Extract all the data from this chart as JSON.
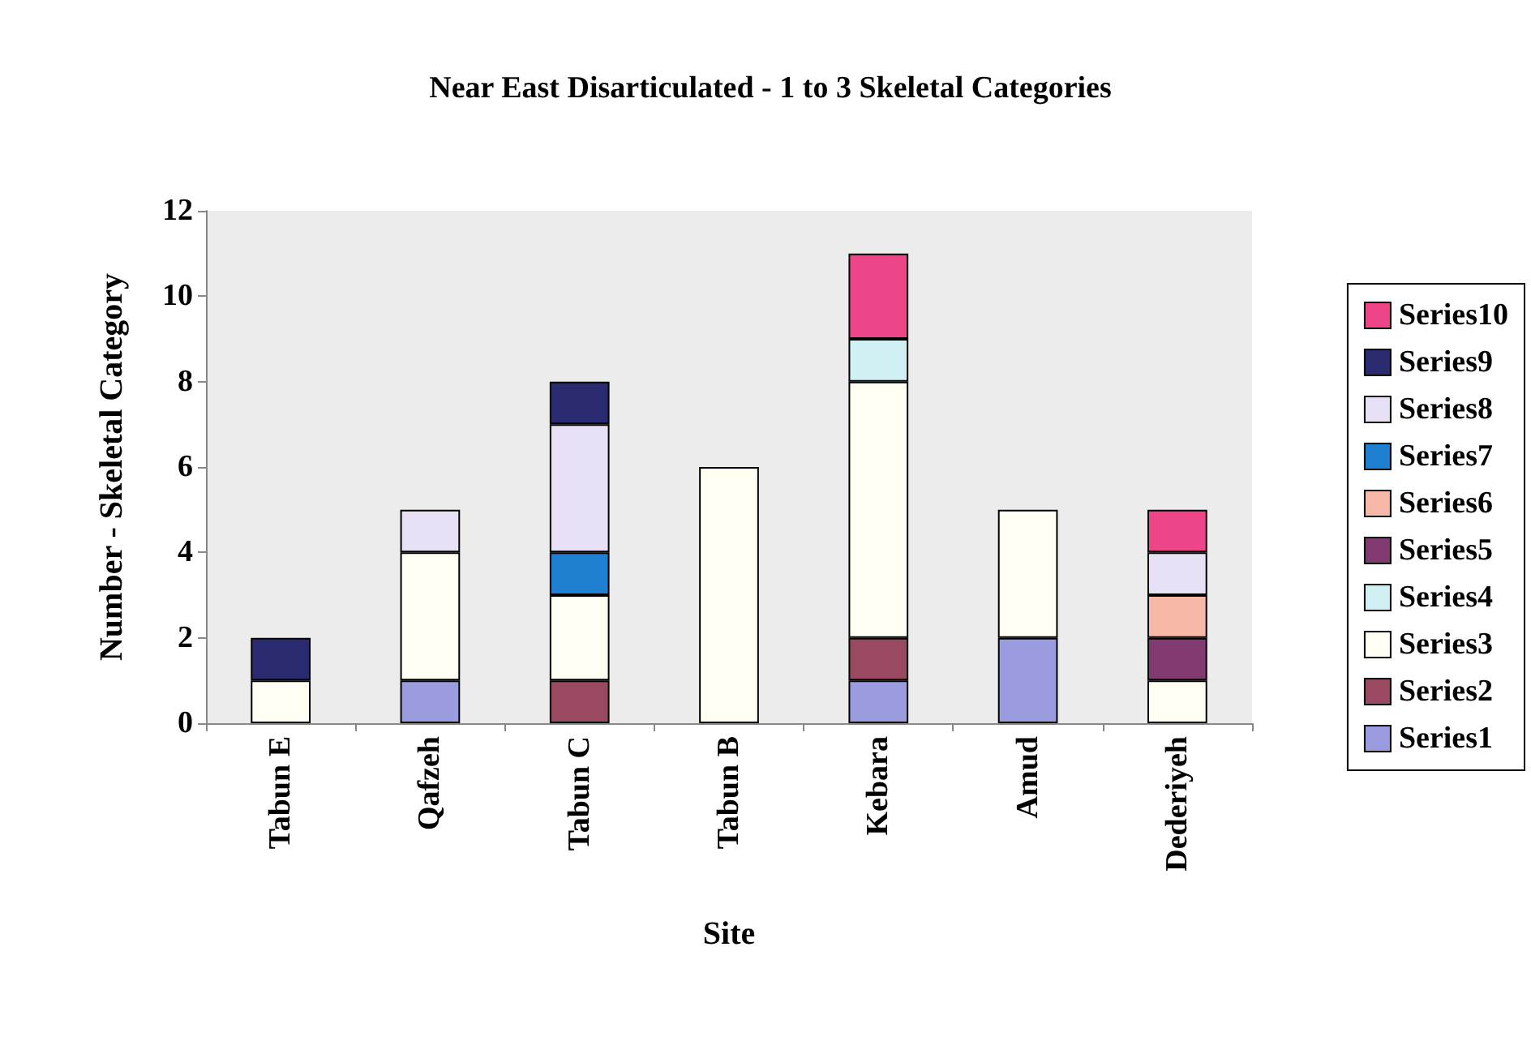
{
  "chart_data": {
    "type": "bar",
    "stacked": true,
    "title": "Near East Disarticulated - 1 to 3 Skeletal Categories",
    "xlabel": "Site",
    "ylabel": "Number - Skeletal Category",
    "categories": [
      "Tabun E",
      "Qafzeh",
      "Tabun C",
      "Tabun B",
      "Kebara",
      "Amud",
      "Dederiyeh"
    ],
    "series": [
      {
        "name": "Series1",
        "color": "#9b9be0",
        "values": [
          null,
          1,
          null,
          null,
          1,
          2,
          null
        ]
      },
      {
        "name": "Series2",
        "color": "#9a4a60",
        "values": [
          null,
          null,
          1,
          null,
          1,
          null,
          null
        ]
      },
      {
        "name": "Series3",
        "color": "#fffff4",
        "values": [
          1,
          3,
          2,
          6,
          6,
          3,
          1
        ]
      },
      {
        "name": "Series4",
        "color": "#d0f0f4",
        "values": [
          null,
          null,
          null,
          null,
          1,
          null,
          null
        ]
      },
      {
        "name": "Series5",
        "color": "#803a70",
        "values": [
          null,
          null,
          null,
          null,
          null,
          null,
          1
        ]
      },
      {
        "name": "Series6",
        "color": "#f8b8a8",
        "values": [
          null,
          null,
          null,
          null,
          null,
          null,
          1
        ]
      },
      {
        "name": "Series7",
        "color": "#1f7fd0",
        "values": [
          null,
          null,
          1,
          null,
          null,
          null,
          null
        ]
      },
      {
        "name": "Series8",
        "color": "#e8e0f4",
        "values": [
          null,
          1,
          3,
          null,
          null,
          null,
          1
        ]
      },
      {
        "name": "Series9",
        "color": "#2a2a70",
        "values": [
          1,
          null,
          1,
          null,
          null,
          null,
          null
        ]
      },
      {
        "name": "Series10",
        "color": "#ee4488",
        "values": [
          null,
          null,
          null,
          null,
          2,
          null,
          1
        ]
      }
    ],
    "ylim": [
      0,
      12
    ],
    "yticks": [
      0,
      2,
      4,
      6,
      8,
      10,
      12
    ],
    "grid": false,
    "legend": "right"
  }
}
